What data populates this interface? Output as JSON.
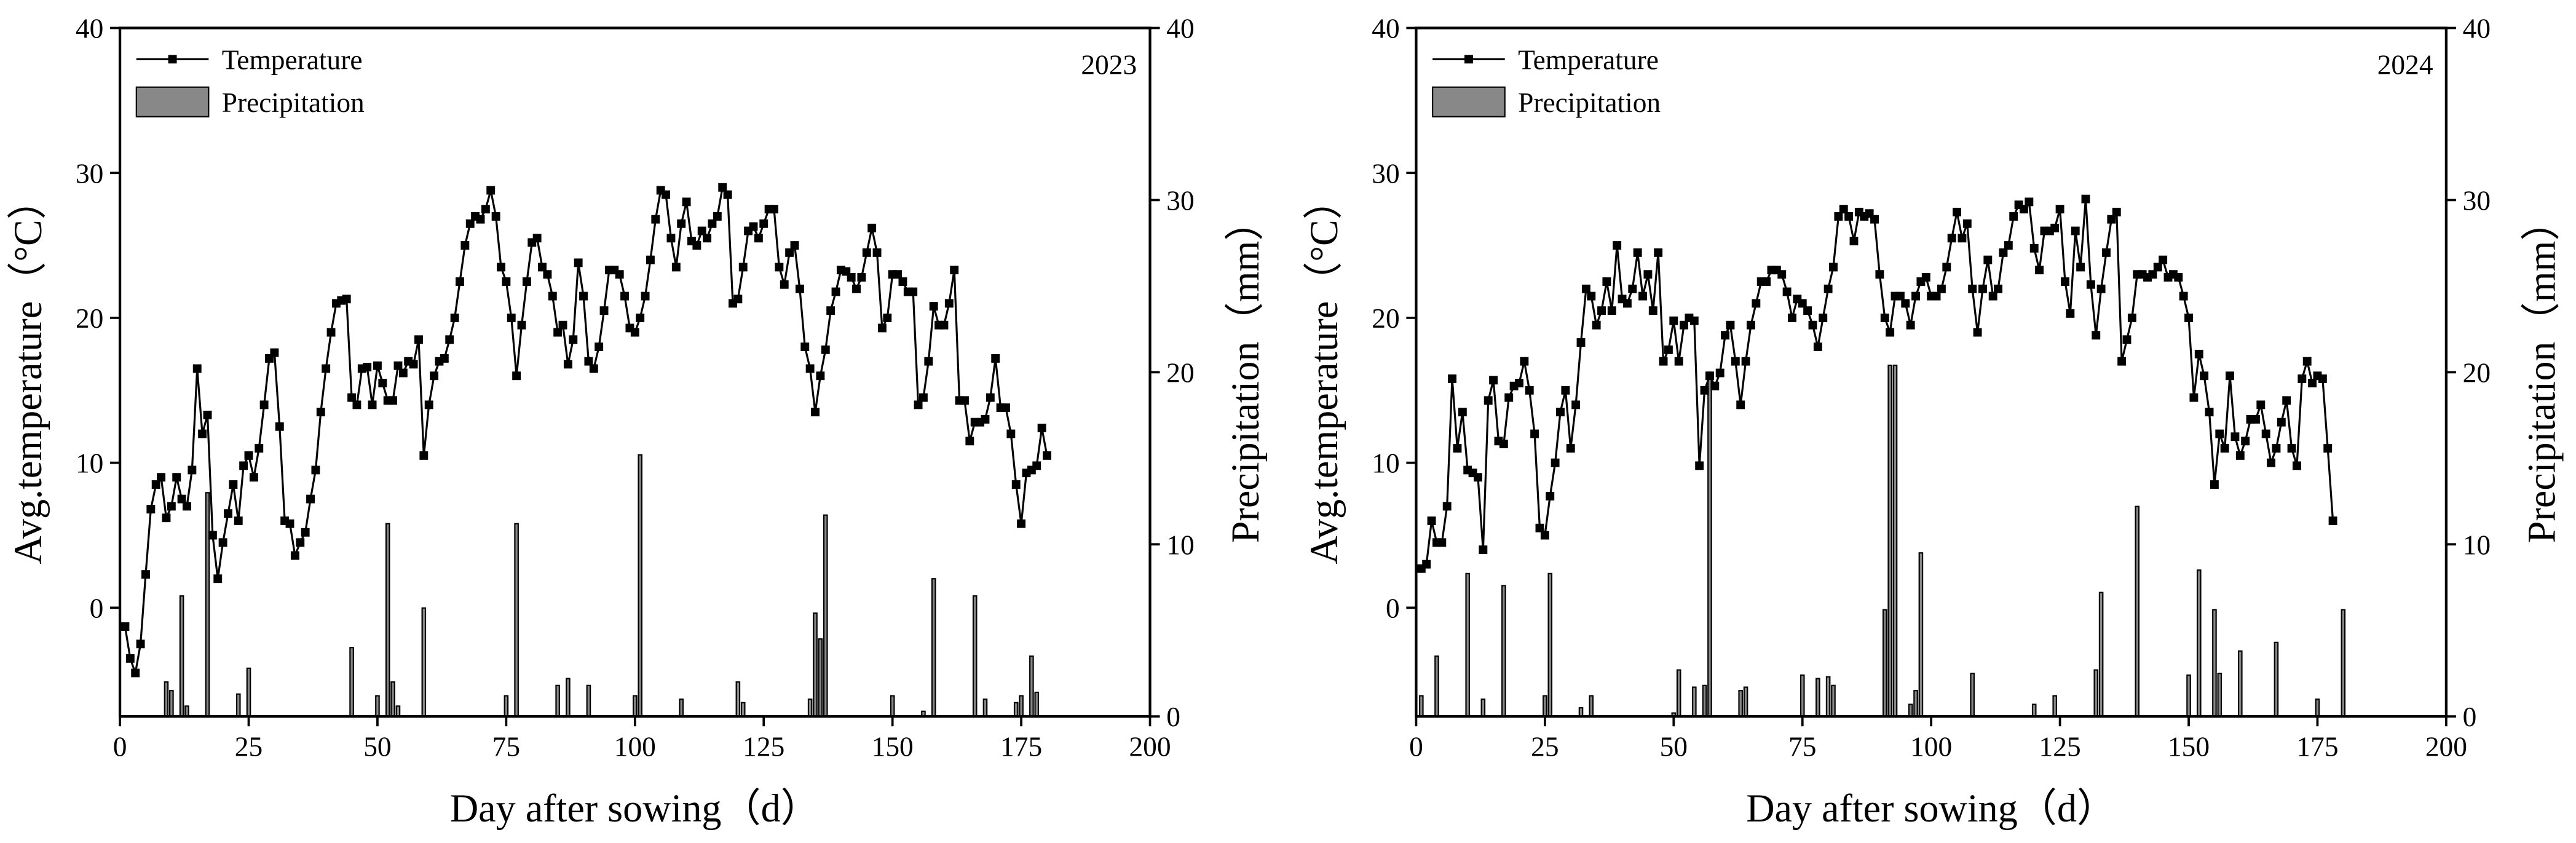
{
  "chart_data": [
    {
      "type": "combo",
      "annotation": "2023",
      "xlabel": "Day after sowing（d）",
      "ylabel": "Avg.temperature（°C）",
      "y2label": "Precipitation（mm）",
      "xlim": [
        0,
        200
      ],
      "xticks": [
        0,
        25,
        50,
        75,
        100,
        125,
        150,
        175,
        200
      ],
      "ylim": [
        -7.5,
        40
      ],
      "yticks": [
        0,
        10,
        20,
        30,
        40
      ],
      "y2lim": [
        0,
        40
      ],
      "y2ticks": [
        0,
        10,
        20,
        30,
        40
      ],
      "series": [
        {
          "name": "Temperature",
          "color": "#000000",
          "x": [
            1,
            2,
            3,
            4,
            5,
            6,
            7,
            8,
            9,
            10,
            11,
            12,
            13,
            14,
            15,
            16,
            17,
            18,
            19,
            20,
            21,
            22,
            23,
            24,
            25,
            26,
            27,
            28,
            29,
            30,
            31,
            32,
            33,
            34,
            35,
            36,
            37,
            38,
            39,
            40,
            41,
            42,
            43,
            44,
            45,
            46,
            47,
            48,
            49,
            50,
            51,
            52,
            53,
            54,
            55,
            56,
            57,
            58,
            59,
            60,
            61,
            62,
            63,
            64,
            65,
            66,
            67,
            68,
            69,
            70,
            71,
            72,
            73,
            74,
            75,
            76,
            77,
            78,
            79,
            80,
            81,
            82,
            83,
            84,
            85,
            86,
            87,
            88,
            89,
            90,
            91,
            92,
            93,
            94,
            95,
            96,
            97,
            98,
            99,
            100,
            101,
            102,
            103,
            104,
            105,
            106,
            107,
            108,
            109,
            110,
            111,
            112,
            113,
            114,
            115,
            116,
            117,
            118,
            119,
            120,
            121,
            122,
            123,
            124,
            125,
            126,
            127,
            128,
            129,
            130,
            131,
            132,
            133,
            134,
            135,
            136,
            137,
            138,
            139,
            140,
            141,
            142,
            143,
            144,
            145,
            146,
            147,
            148,
            149,
            150,
            151,
            152,
            153,
            154,
            155,
            156,
            157,
            158,
            159,
            160,
            161,
            162,
            163,
            164,
            165,
            166,
            167,
            168,
            169,
            170,
            171,
            172,
            173,
            174,
            175,
            176,
            177,
            178,
            179,
            180
          ],
          "values": [
            -1.3,
            -3.5,
            -4.5,
            -2.5,
            2.3,
            6.8,
            8.5,
            9,
            6.2,
            7,
            9,
            7.5,
            7,
            9.5,
            16.5,
            12,
            13.3,
            5,
            2,
            4.5,
            6.5,
            8.5,
            6,
            9.8,
            10.5,
            9,
            11,
            14,
            17.2,
            17.6,
            12.5,
            6,
            5.8,
            3.6,
            4.5,
            5.2,
            7.5,
            9.5,
            13.5,
            16.5,
            19,
            21,
            21.2,
            21.3,
            14.5,
            14,
            16.5,
            16.6,
            14,
            16.7,
            15.5,
            14.3,
            14.3,
            16.7,
            16.2,
            17,
            16.8,
            18.5,
            10.5,
            14,
            16,
            17,
            17.2,
            18.5,
            20,
            22.5,
            25,
            26.5,
            27,
            26.8,
            27.5,
            28.8,
            27,
            23.5,
            22.5,
            20,
            16,
            19.5,
            22.5,
            25.2,
            25.5,
            23.5,
            23,
            21.5,
            19,
            19.5,
            16.8,
            18.5,
            23.8,
            21.5,
            17,
            16.5,
            18,
            20.5,
            23.3,
            23.3,
            23,
            21.5,
            19.3,
            19,
            20,
            21.5,
            24,
            26.8,
            28.8,
            28.5,
            25.5,
            23.5,
            26.5,
            28,
            25.3,
            25,
            26,
            25.5,
            26.5,
            27,
            29,
            28.5,
            21,
            21.3,
            23.5,
            26,
            26.3,
            25.5,
            26.5,
            27.5,
            27.5,
            23.5,
            22.3,
            24.5,
            25,
            22,
            18,
            16.5,
            13.5,
            16,
            17.8,
            20.5,
            21.8,
            23.3,
            23.2,
            22.8,
            22,
            22.8,
            24.5,
            26.2,
            24.5,
            19.3,
            20,
            23,
            23,
            22.5,
            21.8,
            21.8,
            14,
            14.5,
            17,
            20.8,
            19.5,
            19.5,
            21,
            23.3,
            14.3,
            14.3,
            11.5,
            12.8,
            12.8,
            13,
            14.5,
            17.2,
            13.8,
            13.8,
            12,
            8.5,
            5.8,
            9.3,
            9.5,
            9.8,
            12.4,
            10.5
          ]
        },
        {
          "name": "Precipitation",
          "color": "#888888",
          "axis": "y2",
          "x": [
            9,
            10,
            12,
            13,
            17,
            23,
            25,
            45,
            50,
            52,
            53,
            54,
            59,
            75,
            77,
            85,
            87,
            91,
            100,
            101,
            109,
            120,
            121,
            134,
            135,
            136,
            137,
            150,
            156,
            158,
            166,
            168,
            174,
            175,
            177,
            178
          ],
          "values": [
            2,
            1.5,
            7,
            0.6,
            13,
            1.3,
            2.8,
            4,
            1.2,
            11.2,
            2,
            0.6,
            6.3,
            1.2,
            11.2,
            1.8,
            2.2,
            1.8,
            1.2,
            15.2,
            1,
            2,
            0.8,
            1,
            6,
            4.5,
            11.7,
            1.2,
            0.3,
            8,
            7,
            1,
            0.8,
            1.2,
            3.5,
            1.4
          ]
        }
      ]
    },
    {
      "type": "combo",
      "annotation": "2024",
      "xlabel": "Day after sowing（d）",
      "ylabel": "Avg.temperature（°C）",
      "y2label": "Precipitation（mm）",
      "xlim": [
        0,
        200
      ],
      "xticks": [
        0,
        25,
        50,
        75,
        100,
        125,
        150,
        175,
        200
      ],
      "ylim": [
        -7.5,
        40
      ],
      "yticks": [
        0,
        10,
        20,
        30,
        40
      ],
      "y2lim": [
        0,
        40
      ],
      "y2ticks": [
        0,
        10,
        20,
        30,
        40
      ],
      "series": [
        {
          "name": "Temperature",
          "color": "#000000",
          "x": [
            1,
            2,
            3,
            4,
            5,
            6,
            7,
            8,
            9,
            10,
            11,
            12,
            13,
            14,
            15,
            16,
            17,
            18,
            19,
            20,
            21,
            22,
            23,
            24,
            25,
            26,
            27,
            28,
            29,
            30,
            31,
            32,
            33,
            34,
            35,
            36,
            37,
            38,
            39,
            40,
            41,
            42,
            43,
            44,
            45,
            46,
            47,
            48,
            49,
            50,
            51,
            52,
            53,
            54,
            55,
            56,
            57,
            58,
            59,
            60,
            61,
            62,
            63,
            64,
            65,
            66,
            67,
            68,
            69,
            70,
            71,
            72,
            73,
            74,
            75,
            76,
            77,
            78,
            79,
            80,
            81,
            82,
            83,
            84,
            85,
            86,
            87,
            88,
            89,
            90,
            91,
            92,
            93,
            94,
            95,
            96,
            97,
            98,
            99,
            100,
            101,
            102,
            103,
            104,
            105,
            106,
            107,
            108,
            109,
            110,
            111,
            112,
            113,
            114,
            115,
            116,
            117,
            118,
            119,
            120,
            121,
            122,
            123,
            124,
            125,
            126,
            127,
            128,
            129,
            130,
            131,
            132,
            133,
            134,
            135,
            136,
            137,
            138,
            139,
            140,
            141,
            142,
            143,
            144,
            145,
            146,
            147,
            148,
            149,
            150,
            151,
            152,
            153,
            154,
            155,
            156,
            157,
            158,
            159,
            160,
            161,
            162,
            163,
            164,
            165,
            166,
            167,
            168,
            169,
            170,
            171,
            172,
            173,
            174,
            175,
            176,
            177,
            178
          ],
          "values": [
            2.7,
            3,
            6,
            4.5,
            4.5,
            7,
            15.8,
            11,
            13.5,
            9.5,
            9.3,
            9,
            4,
            14.3,
            15.7,
            11.5,
            11.3,
            14.5,
            15.3,
            15.5,
            17,
            15,
            12,
            5.5,
            5,
            7.7,
            10,
            13.5,
            15,
            11,
            14,
            18.3,
            22,
            21.5,
            19.5,
            20.5,
            22.5,
            20.5,
            25,
            21.3,
            21,
            22,
            24.5,
            21.5,
            23,
            20.5,
            24.5,
            17,
            17.8,
            19.8,
            17,
            19.5,
            20,
            19.8,
            9.8,
            15,
            16,
            15.3,
            16.2,
            18.8,
            19.5,
            17,
            14,
            17,
            19.5,
            21,
            22.5,
            22.5,
            23.3,
            23.3,
            23,
            21.8,
            20,
            21.3,
            21,
            20.5,
            19.5,
            18,
            20,
            22,
            23.5,
            27,
            27.5,
            27,
            25.3,
            27.3,
            27,
            27.2,
            26.8,
            23,
            20,
            19,
            21.5,
            21.5,
            21,
            19.5,
            21.5,
            22.5,
            22.8,
            21.5,
            21.5,
            22,
            23.5,
            25.5,
            27.3,
            25.5,
            26.5,
            22,
            19,
            22,
            24,
            21.5,
            22,
            24.5,
            25,
            27,
            27.8,
            27.5,
            28,
            24.8,
            23.3,
            26,
            26,
            26.2,
            27.5,
            22.5,
            20.3,
            26,
            23.5,
            28.2,
            22.3,
            18.8,
            22,
            24.5,
            26.8,
            27.3,
            17,
            18.5,
            20,
            23,
            23,
            22.8,
            23,
            23.5,
            24,
            22.8,
            23,
            22.8,
            21.5,
            20,
            14.5,
            17.5,
            16,
            13.5,
            8.5,
            12,
            11,
            16,
            11.8,
            10.5,
            11.5,
            13,
            13,
            14,
            12,
            10,
            11,
            12.8,
            14.3,
            11,
            9.8,
            15.8,
            17,
            15.5,
            16,
            15.8,
            11,
            6
          ]
        },
        {
          "name": "Precipitation",
          "color": "#888888",
          "axis": "y2",
          "x": [
            1,
            4,
            10,
            13,
            17,
            25,
            26,
            32,
            34,
            50,
            51,
            54,
            56,
            57,
            63,
            64,
            75,
            78,
            80,
            81,
            91,
            92,
            93,
            96,
            97,
            98,
            108,
            120,
            124,
            132,
            133,
            140,
            150,
            152,
            155,
            156,
            160,
            167,
            175,
            180
          ],
          "values": [
            1.2,
            3.5,
            8.3,
            1,
            7.6,
            1.2,
            8.3,
            0.5,
            1.2,
            0.2,
            2.7,
            1.7,
            1.8,
            20,
            1.5,
            1.7,
            2.4,
            2.2,
            2.3,
            1.8,
            6.2,
            20.4,
            20.4,
            0.7,
            1.5,
            9.5,
            2.5,
            0.7,
            1.2,
            2.7,
            7.2,
            12.2,
            2.4,
            8.5,
            6.2,
            2.5,
            3.8,
            4.3,
            1,
            6.2
          ]
        }
      ]
    }
  ]
}
